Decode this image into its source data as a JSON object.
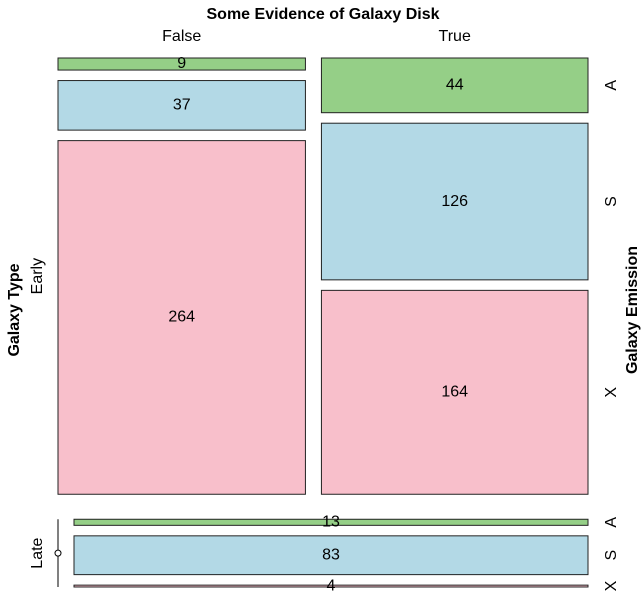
{
  "chart_data": {
    "type": "mosaic",
    "title": "Some Evidence of Galaxy Disk",
    "column_levels": [
      "False",
      "True"
    ],
    "row_axis_label": "Galaxy Type",
    "row_levels": [
      "Early",
      "Late"
    ],
    "right_axis_label": "Galaxy Emission",
    "series": [
      {
        "name": "A",
        "color": "#95cf87",
        "values": [
          [
            9,
            44
          ],
          [
            0,
            13
          ]
        ]
      },
      {
        "name": "S",
        "color": "#b3d9e6",
        "values": [
          [
            37,
            126
          ],
          [
            0,
            83
          ]
        ]
      },
      {
        "name": "X",
        "color": "#f8bfcb",
        "values": [
          [
            264,
            164
          ],
          [
            0,
            4
          ]
        ]
      }
    ]
  }
}
